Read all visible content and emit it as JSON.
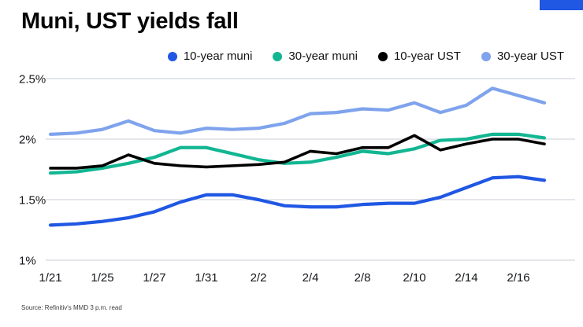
{
  "accent_color": "#2057e3",
  "header": {
    "title": "Muni, UST yields fall"
  },
  "footer": {
    "source": "Source: Refinitiv's MMD 3 p.m. read"
  },
  "chart_data": {
    "type": "line",
    "title": "Muni, UST yields fall",
    "ylim": [
      1.0,
      2.5
    ],
    "grid": "horizontal",
    "legend_position": "top-right",
    "x_point_count": 20,
    "y_ticks": [
      {
        "label": "2.5%",
        "value": 2.5
      },
      {
        "label": "2%",
        "value": 2.0
      },
      {
        "label": "1.5%",
        "value": 1.5
      },
      {
        "label": "1%",
        "value": 1.0
      }
    ],
    "x_tick_labels": [
      {
        "label": "1/21",
        "index": 0
      },
      {
        "label": "1/25",
        "index": 2
      },
      {
        "label": "1/27",
        "index": 4
      },
      {
        "label": "1/31",
        "index": 6
      },
      {
        "label": "2/2",
        "index": 8
      },
      {
        "label": "2/4",
        "index": 10
      },
      {
        "label": "2/8",
        "index": 12
      },
      {
        "label": "2/10",
        "index": 14
      },
      {
        "label": "2/14",
        "index": 16
      },
      {
        "label": "2/16",
        "index": 18
      }
    ],
    "series": [
      {
        "name": "10-year muni",
        "color": "#2057e3",
        "values": [
          1.29,
          1.3,
          1.32,
          1.35,
          1.4,
          1.48,
          1.54,
          1.54,
          1.5,
          1.45,
          1.44,
          1.44,
          1.46,
          1.47,
          1.47,
          1.52,
          1.6,
          1.68,
          1.69,
          1.66
        ]
      },
      {
        "name": "30-year muni",
        "color": "#12b692",
        "values": [
          1.72,
          1.73,
          1.76,
          1.8,
          1.85,
          1.93,
          1.93,
          1.88,
          1.83,
          1.8,
          1.81,
          1.85,
          1.9,
          1.88,
          1.92,
          1.99,
          2.0,
          2.04,
          2.04,
          2.01
        ]
      },
      {
        "name": "10-year UST",
        "color": "#000000",
        "values": [
          1.76,
          1.76,
          1.78,
          1.87,
          1.8,
          1.78,
          1.77,
          1.78,
          1.79,
          1.81,
          1.9,
          1.88,
          1.93,
          1.93,
          2.03,
          1.91,
          1.96,
          2.0,
          2.0,
          1.96
        ]
      },
      {
        "name": "30-year UST",
        "color": "#7fa3ec",
        "values": [
          2.04,
          2.05,
          2.08,
          2.15,
          2.07,
          2.05,
          2.09,
          2.08,
          2.09,
          2.13,
          2.21,
          2.22,
          2.25,
          2.24,
          2.3,
          2.22,
          2.28,
          2.42,
          2.36,
          2.3
        ]
      }
    ]
  }
}
